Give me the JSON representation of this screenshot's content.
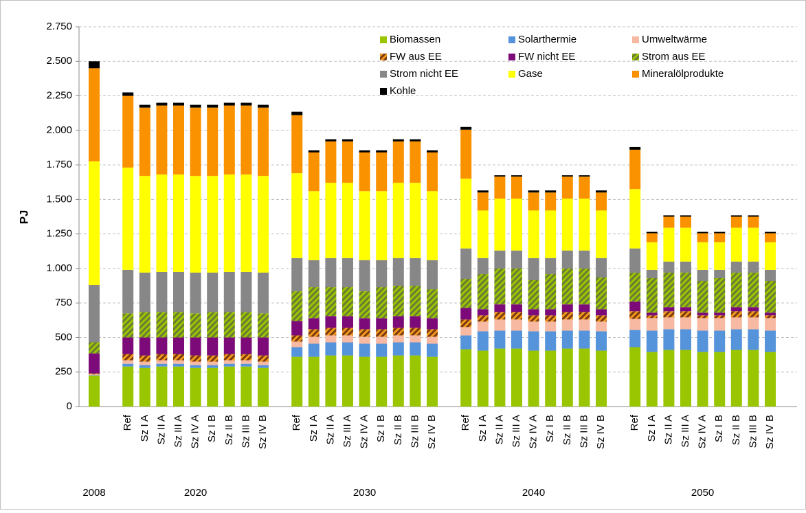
{
  "chart_data": {
    "type": "stacked_bar",
    "ylabel": "PJ",
    "groups": [
      "2008",
      "2020",
      "2030",
      "2040",
      "2050"
    ],
    "categories": [
      [
        null
      ],
      [
        "Ref",
        "Sz I A",
        "Sz II A",
        "Sz III A",
        "Sz IV A",
        "Sz I B",
        "Sz II B",
        "Sz III B",
        "Sz IV B"
      ],
      [
        "Ref",
        "Sz I A",
        "Sz II A",
        "Sz III A",
        "Sz IV A",
        "Sz I B",
        "Sz II B",
        "Sz III B",
        "Sz IV B"
      ],
      [
        "Ref",
        "Sz I A",
        "Sz II A",
        "Sz III A",
        "Sz IV A",
        "Sz I B",
        "Sz II B",
        "Sz III B",
        "Sz IV B"
      ],
      [
        "Ref",
        "Sz I A",
        "Sz II A",
        "Sz III A",
        "Sz IV A",
        "Sz I B",
        "Sz II B",
        "Sz III B",
        "Sz IV B"
      ]
    ],
    "ylim": [
      0,
      2750
    ],
    "yticks": [
      0,
      250,
      500,
      750,
      {
        "value": 1000,
        "label": "1.000"
      },
      {
        "value": 1250,
        "label": "1.250"
      },
      {
        "value": 1500,
        "label": "1.500"
      },
      {
        "value": 1750,
        "label": "1.750"
      },
      {
        "value": 2000,
        "label": "2.000"
      },
      {
        "value": 2250,
        "label": "2.250"
      },
      {
        "value": 2500,
        "label": "2.500"
      },
      {
        "value": 2750,
        "label": "2.750"
      }
    ],
    "grid": true,
    "series": [
      {
        "name": "Biomassen",
        "color": "#99c600",
        "values": [
          [
            225
          ],
          [
            290,
            280,
            290,
            290,
            280,
            280,
            290,
            290,
            280
          ],
          [
            360,
            360,
            370,
            370,
            360,
            360,
            370,
            370,
            360
          ],
          [
            415,
            405,
            420,
            420,
            405,
            405,
            420,
            420,
            405
          ],
          [
            430,
            395,
            410,
            410,
            395,
            395,
            410,
            410,
            395
          ]
        ]
      },
      {
        "name": "Solarthermie",
        "color": "#5593db",
        "values": [
          [
            3
          ],
          [
            20,
            20,
            20,
            20,
            20,
            20,
            20,
            20,
            20
          ],
          [
            70,
            95,
            95,
            95,
            95,
            95,
            95,
            95,
            95
          ],
          [
            100,
            140,
            130,
            130,
            140,
            140,
            130,
            130,
            140
          ],
          [
            125,
            155,
            150,
            150,
            155,
            155,
            150,
            150,
            155
          ]
        ]
      },
      {
        "name": "Umweltwärme",
        "color": "#f8b9a3",
        "values": [
          [
            5
          ],
          [
            25,
            25,
            25,
            25,
            25,
            25,
            25,
            25,
            25
          ],
          [
            40,
            50,
            50,
            50,
            50,
            50,
            50,
            50,
            50
          ],
          [
            60,
            70,
            80,
            80,
            70,
            70,
            80,
            80,
            70
          ],
          [
            80,
            90,
            85,
            85,
            90,
            90,
            85,
            85,
            90
          ]
        ]
      },
      {
        "name": "FW aus EE",
        "color": "#f39a1e",
        "hatch": "#7a3a10",
        "values": [
          [
            7
          ],
          [
            45,
            45,
            45,
            45,
            45,
            45,
            45,
            45,
            45
          ],
          [
            45,
            55,
            55,
            55,
            55,
            55,
            55,
            55,
            55
          ],
          [
            55,
            45,
            55,
            55,
            45,
            45,
            55,
            55,
            45
          ],
          [
            55,
            20,
            45,
            45,
            20,
            20,
            45,
            45,
            20
          ]
        ]
      },
      {
        "name": "FW nicht EE",
        "color": "#7c0a78",
        "values": [
          [
            145
          ],
          [
            120,
            130,
            120,
            120,
            130,
            130,
            120,
            120,
            130
          ],
          [
            105,
            80,
            85,
            85,
            80,
            80,
            85,
            85,
            80
          ],
          [
            85,
            45,
            55,
            55,
            45,
            45,
            55,
            55,
            45
          ],
          [
            70,
            20,
            30,
            30,
            20,
            20,
            30,
            30,
            20
          ]
        ]
      },
      {
        "name": "Strom aus EE",
        "color": "#99c600",
        "hatch": "#6d7a35",
        "values": [
          [
            80
          ],
          [
            175,
            185,
            185,
            185,
            175,
            185,
            185,
            185,
            175
          ],
          [
            215,
            225,
            210,
            210,
            195,
            225,
            220,
            220,
            210
          ],
          [
            210,
            255,
            260,
            260,
            210,
            255,
            260,
            260,
            230
          ],
          [
            210,
            250,
            250,
            250,
            230,
            250,
            250,
            250,
            230
          ]
        ]
      },
      {
        "name": "Strom nicht EE",
        "color": "#878787",
        "values": [
          [
            415
          ],
          [
            315,
            285,
            290,
            290,
            295,
            285,
            290,
            290,
            295
          ],
          [
            240,
            195,
            210,
            210,
            225,
            195,
            200,
            200,
            210
          ],
          [
            220,
            115,
            130,
            130,
            160,
            115,
            130,
            130,
            140
          ],
          [
            175,
            60,
            80,
            80,
            80,
            60,
            80,
            80,
            80
          ]
        ]
      },
      {
        "name": "Gase",
        "color": "#ffff00",
        "values": [
          [
            895
          ],
          [
            740,
            700,
            705,
            705,
            700,
            700,
            705,
            705,
            700
          ],
          [
            615,
            500,
            545,
            545,
            500,
            500,
            545,
            545,
            500
          ],
          [
            505,
            345,
            375,
            375,
            345,
            345,
            375,
            375,
            345
          ],
          [
            430,
            200,
            245,
            245,
            200,
            200,
            245,
            245,
            200
          ]
        ]
      },
      {
        "name": "Mineralölprodukte",
        "color": "#fa9200",
        "values": [
          [
            675
          ],
          [
            520,
            495,
            500,
            500,
            495,
            495,
            500,
            500,
            495
          ],
          [
            420,
            280,
            300,
            300,
            280,
            280,
            300,
            300,
            280
          ],
          [
            355,
            130,
            160,
            160,
            130,
            130,
            160,
            160,
            130
          ],
          [
            285,
            65,
            80,
            80,
            65,
            65,
            80,
            80,
            65
          ]
        ]
      },
      {
        "name": "Kohle",
        "color": "#000000",
        "values": [
          [
            50
          ],
          [
            25,
            20,
            20,
            20,
            20,
            20,
            20,
            20,
            20
          ],
          [
            25,
            15,
            15,
            15,
            15,
            15,
            15,
            15,
            15
          ],
          [
            20,
            15,
            10,
            10,
            15,
            15,
            10,
            10,
            15
          ],
          [
            20,
            10,
            10,
            10,
            10,
            10,
            10,
            10,
            10
          ]
        ]
      }
    ]
  }
}
